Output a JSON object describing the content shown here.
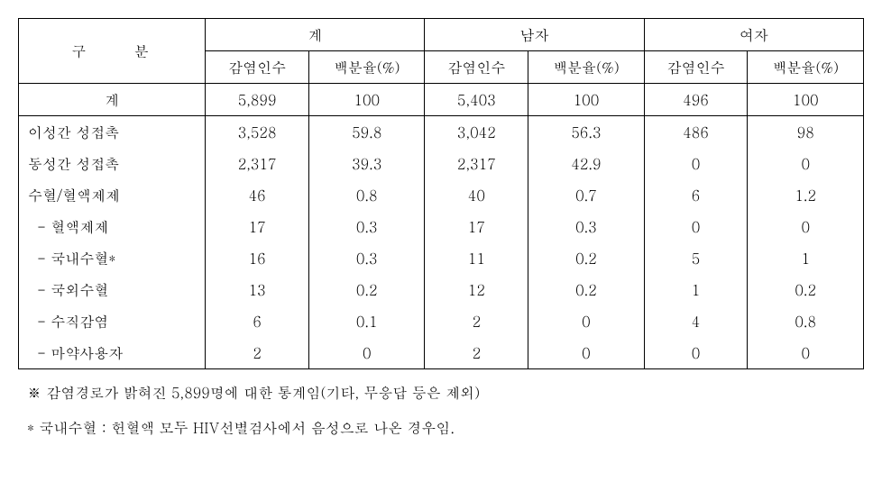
{
  "headers": {
    "category": "구   분",
    "total_group": "계",
    "male_group": "남자",
    "female_group": "여자",
    "count": "감염인수",
    "percent": "백분율(%)"
  },
  "total_row": {
    "label": "계",
    "total_count": "5,899",
    "total_pct": "100",
    "male_count": "5,403",
    "male_pct": "100",
    "female_count": "496",
    "female_pct": "100"
  },
  "rows": [
    {
      "label": "이성간 성접촉",
      "sub": false,
      "total_count": "3,528",
      "total_pct": "59.8",
      "male_count": "3,042",
      "male_pct": "56.3",
      "female_count": "486",
      "female_pct": "98"
    },
    {
      "label": "동성간 성접촉",
      "sub": false,
      "total_count": "2,317",
      "total_pct": "39.3",
      "male_count": "2,317",
      "male_pct": "42.9",
      "female_count": "0",
      "female_pct": "0"
    },
    {
      "label": "수혈/혈액제제",
      "sub": false,
      "total_count": "46",
      "total_pct": "0.8",
      "male_count": "40",
      "male_pct": "0.7",
      "female_count": "6",
      "female_pct": "1.2"
    },
    {
      "label": "- 혈액제제",
      "sub": true,
      "total_count": "17",
      "total_pct": "0.3",
      "male_count": "17",
      "male_pct": "0.3",
      "female_count": "0",
      "female_pct": "0"
    },
    {
      "label": "- 국내수혈*",
      "sub": true,
      "total_count": "16",
      "total_pct": "0.3",
      "male_count": "11",
      "male_pct": "0.2",
      "female_count": "5",
      "female_pct": "1"
    },
    {
      "label": "- 국외수혈",
      "sub": true,
      "total_count": "13",
      "total_pct": "0.2",
      "male_count": "12",
      "male_pct": "0.2",
      "female_count": "1",
      "female_pct": "0.2"
    },
    {
      "label": "- 수직감염",
      "sub": true,
      "total_count": "6",
      "total_pct": "0.1",
      "male_count": "2",
      "male_pct": "0",
      "female_count": "4",
      "female_pct": "0.8"
    },
    {
      "label": "- 마약사용자",
      "sub": true,
      "total_count": "2",
      "total_pct": "0",
      "male_count": "2",
      "male_pct": "0",
      "female_count": "0",
      "female_pct": "0"
    }
  ],
  "footnotes": {
    "f1": "※ 감염경로가 밝혀진 5,899명에 대한 통계임(기타,  무응답 등은 제외)",
    "f2": "* 국내수혈 : 헌혈액 모두 HIV선별검사에서 음성으로  나온 경우임."
  }
}
